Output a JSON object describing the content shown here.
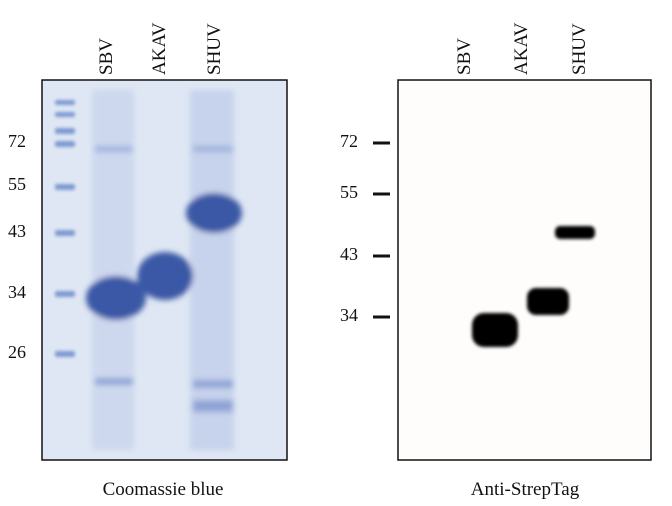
{
  "panels": [
    {
      "lanes": [
        "SBV",
        "AKAV",
        "SHUV"
      ],
      "markers": [
        72,
        55,
        43,
        34,
        26
      ],
      "caption": "Coomassie blue"
    },
    {
      "lanes": [
        "SBV",
        "AKAV",
        "SHUV"
      ],
      "markers": [
        72,
        55,
        43,
        34
      ],
      "caption": "Anti-StrepTag"
    }
  ]
}
